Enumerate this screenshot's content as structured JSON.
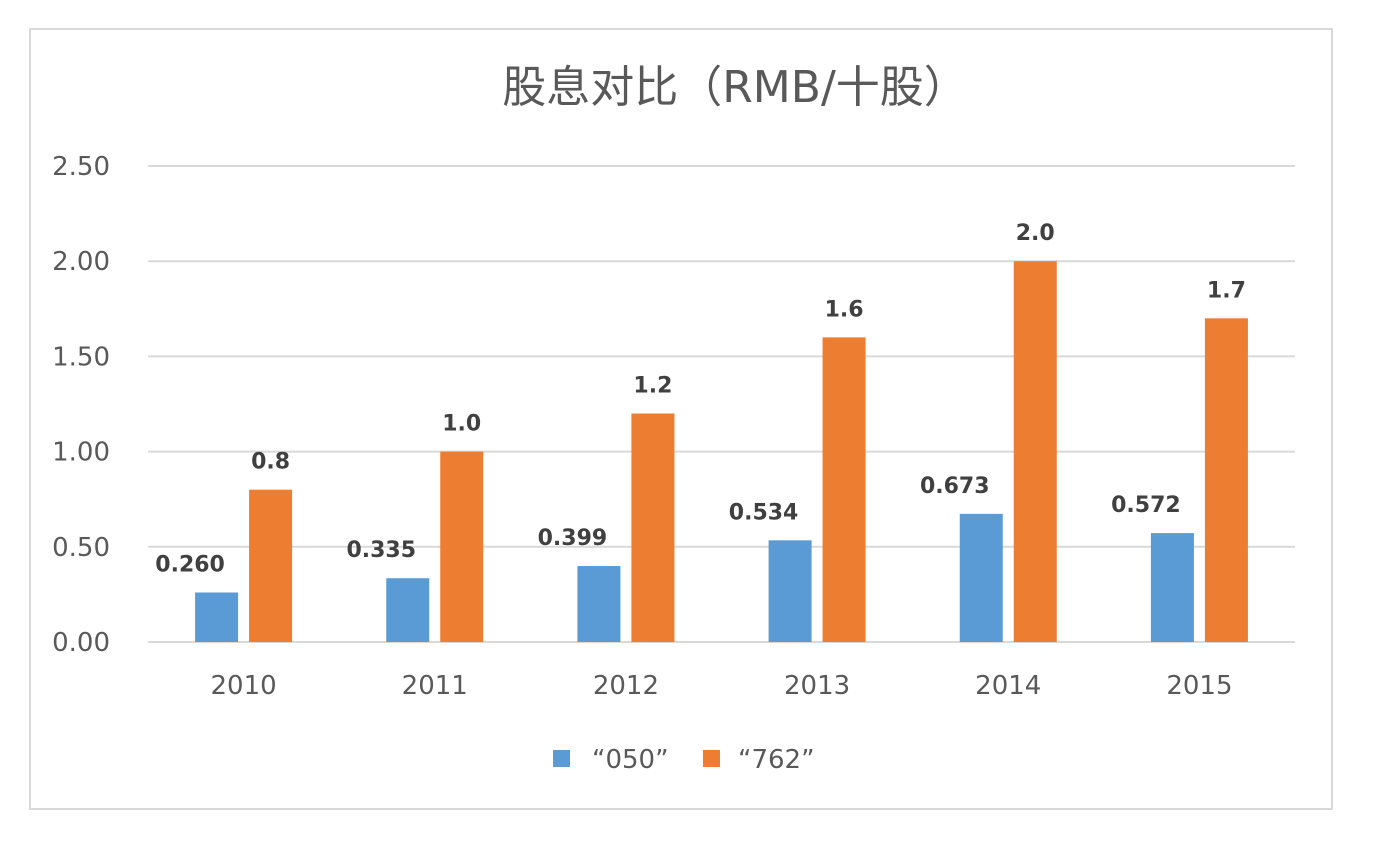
{
  "chart_data": {
    "type": "bar",
    "title": "股息对比（RMB/十股）",
    "categories": [
      "2010",
      "2011",
      "2012",
      "2013",
      "2014",
      "2015"
    ],
    "series": [
      {
        "name": "“050”",
        "color": "#5b9bd5",
        "values": [
          0.26,
          0.335,
          0.399,
          0.534,
          0.673,
          0.572
        ],
        "labels": [
          "0.260",
          "0.335",
          "0.399",
          "0.534",
          "0.673",
          "0.572"
        ]
      },
      {
        "name": "“762”",
        "color": "#ed7d31",
        "values": [
          0.8,
          1.0,
          1.2,
          1.6,
          2.0,
          1.7
        ],
        "labels": [
          "0.8",
          "1.0",
          "1.2",
          "1.6",
          "2.0",
          "1.7"
        ]
      }
    ],
    "ylim": [
      0,
      2.5
    ],
    "yticks": [
      "0.00",
      "0.50",
      "1.00",
      "1.50",
      "2.00",
      "2.50"
    ],
    "xlabel": "",
    "ylabel": "",
    "grid": true,
    "legend": "bottom"
  }
}
